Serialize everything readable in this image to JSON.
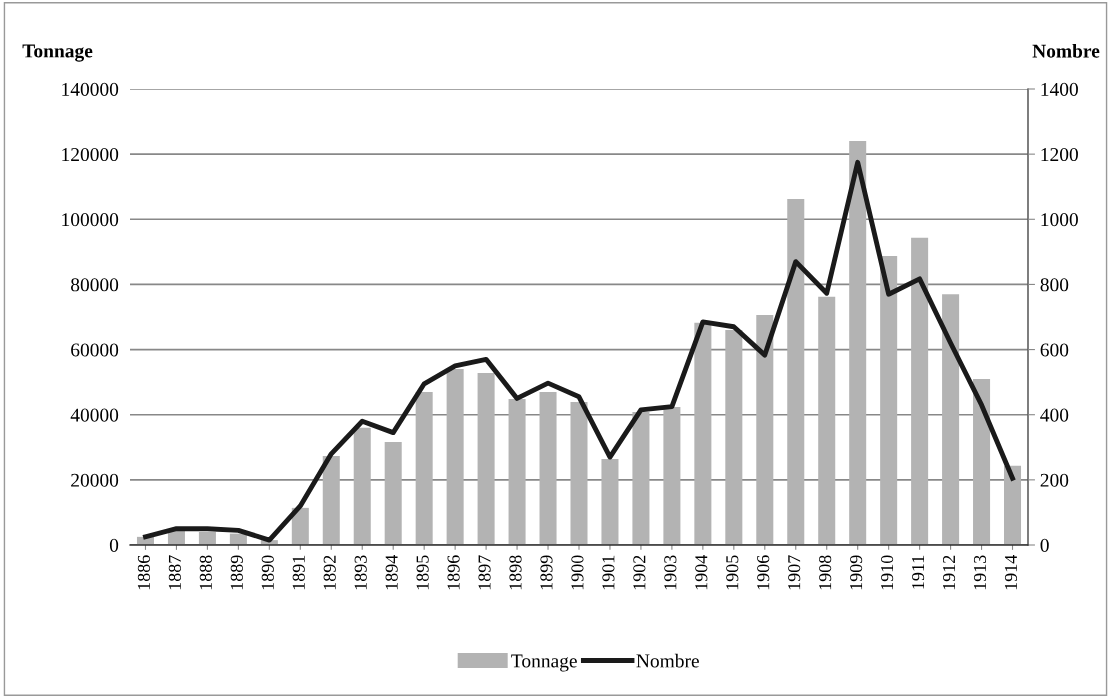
{
  "chart_data": {
    "type": "bar",
    "ylabel": "Tonnage",
    "y2label": "Nombre",
    "categories": [
      "1886",
      "1887",
      "1888",
      "1889",
      "1890",
      "1891",
      "1892",
      "1893",
      "1894",
      "1895",
      "1896",
      "1897",
      "1898",
      "1899",
      "1900",
      "1901",
      "1902",
      "1903",
      "1904",
      "1905",
      "1906",
      "1907",
      "1908",
      "1909",
      "1910",
      "1911",
      "1912",
      "1913",
      "1914"
    ],
    "series": [
      {
        "name": "Tonnage",
        "color": "#b3b3b3",
        "values": [
          2500,
          4500,
          4000,
          3500,
          1500,
          11400,
          27300,
          36000,
          31600,
          47000,
          54000,
          52800,
          44800,
          47000,
          43900,
          26400,
          40800,
          42400,
          68200,
          66000,
          70600,
          106200,
          76200,
          124000,
          88700,
          94300,
          77000,
          51000,
          24300
        ]
      },
      {
        "name": "Nombre",
        "type": "line",
        "axis": "y2",
        "color": "#1a1a1a",
        "values": [
          25,
          50,
          50,
          45,
          15,
          120,
          280,
          380,
          345,
          495,
          550,
          570,
          450,
          497,
          455,
          270,
          415,
          425,
          685,
          670,
          583,
          870,
          773,
          1175,
          770,
          817,
          620,
          430,
          205
        ]
      }
    ],
    "ylim": [
      0,
      140000
    ],
    "yticks": [
      0,
      20000,
      40000,
      60000,
      80000,
      100000,
      120000,
      140000
    ],
    "y2lim": [
      0,
      1400
    ],
    "y2ticks": [
      0,
      200,
      400,
      600,
      800,
      1000,
      1200,
      1400
    ],
    "grid": "y",
    "legend": "bottom",
    "marker": "none",
    "line_style": "solid"
  }
}
